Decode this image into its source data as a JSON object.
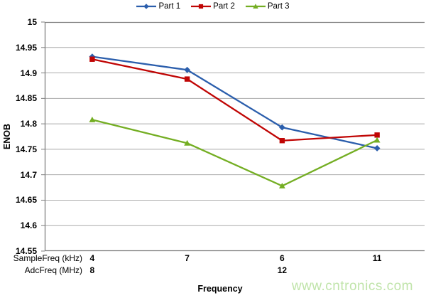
{
  "chart_data": {
    "type": "line",
    "title": "",
    "grid": true,
    "legend_position": "top",
    "grid_color": "#ABABAB",
    "axis_color": "#7F7F7F",
    "x_axis": {
      "title": "Frequency",
      "row1_label": "SampleFreq (kHz)",
      "row2_label": "AdcFreq (MHz)",
      "row1_values": [
        "4",
        "7",
        "6",
        "11"
      ],
      "row2_values": [
        "8",
        "",
        "12",
        ""
      ]
    },
    "y_axis": {
      "title": "ENOB",
      "min": 14.55,
      "max": 15,
      "step": 0.05,
      "tick_labels": [
        "15",
        "14.95",
        "14.9",
        "14.85",
        "14.8",
        "14.75",
        "14.7",
        "14.65",
        "14.6",
        "14.55"
      ]
    },
    "series": [
      {
        "name": "Part 1",
        "color": "#2B5EAC",
        "marker": "diamond",
        "values": [
          14.932,
          14.906,
          14.793,
          14.752
        ]
      },
      {
        "name": "Part 2",
        "color": "#C00504",
        "marker": "square",
        "values": [
          14.927,
          14.888,
          14.767,
          14.778
        ]
      },
      {
        "name": "Part 3",
        "color": "#74AE23",
        "marker": "triangle",
        "values": [
          14.808,
          14.762,
          14.678,
          14.768
        ]
      }
    ]
  },
  "watermark": {
    "text": "www.cntronics.com",
    "color": "#C0E4AA"
  }
}
